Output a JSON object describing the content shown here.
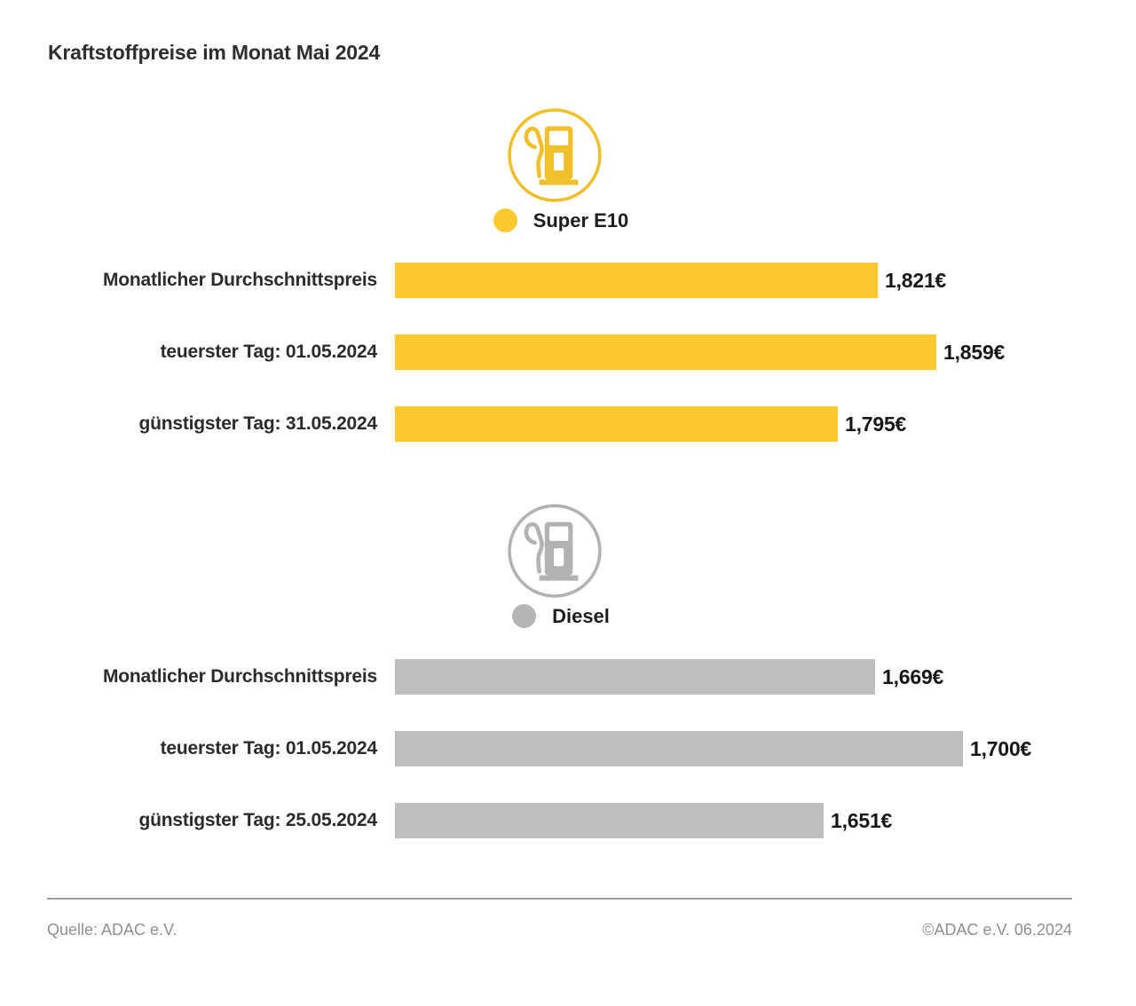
{
  "header": {
    "title": "Kraftstoffpreise im Monat Mai 2024"
  },
  "colors": {
    "yellow": "#FCC92E",
    "yellow_icon": "#F0BF2A",
    "gray": "#BDBDBD",
    "gray_icon": "#B2B2B2",
    "gray_dot": "#B5B5B5",
    "title_text": "#2E2E2E",
    "value_text": "#161616",
    "footer_text": "#8F8F8F",
    "footer_line": "#9B9B9B"
  },
  "icons": {
    "super": "fuel-pump-icon",
    "diesel": "fuel-pump-icon"
  },
  "chart_data": [
    {
      "type": "bar",
      "orientation": "horizontal",
      "title": "Super E10",
      "color": "#FCC92E",
      "categories": [
        "Monatlicher Durchschnittspreis",
        "teuerster Tag: 01.05.2024",
        "günstigster Tag: 31.05.2024"
      ],
      "values": [
        1.821,
        1.859,
        1.795
      ],
      "value_labels": [
        "1,821€",
        "1,859€",
        "1,795€"
      ],
      "unit": "€",
      "xlim": [
        1.508,
        1.876
      ],
      "grid": false,
      "legend_position": "top-center"
    },
    {
      "type": "bar",
      "orientation": "horizontal",
      "title": "Diesel",
      "color": "#BDBDBD",
      "categories": [
        "Monatlicher Durchschnittspreis",
        "teuerster Tag: 01.05.2024",
        "günstigster Tag: 25.05.2024"
      ],
      "values": [
        1.669,
        1.7,
        1.651
      ],
      "value_labels": [
        "1,669€",
        "1,700€",
        "1,651€"
      ],
      "unit": "€",
      "xlim": [
        1.5,
        1.7
      ],
      "grid": false,
      "legend_position": "top-center"
    }
  ],
  "footer": {
    "source": "Quelle: ADAC e.V.",
    "copyright": "©ADAC e.V. 06.2024"
  }
}
